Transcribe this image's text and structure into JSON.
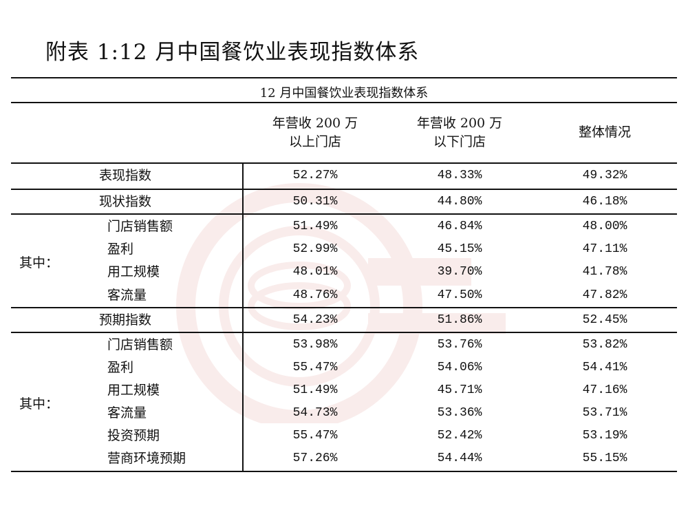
{
  "document": {
    "title": "附表 1:12 月中国餐饮业表现指数体系"
  },
  "table": {
    "caption": "12 月中国餐饮业表现指数体系",
    "headers": {
      "col1_line1": "年营收 200 万",
      "col1_line2": "以上门店",
      "col2_line1": "年营收 200 万",
      "col2_line2": "以下门店",
      "col3": "整体情况"
    },
    "rows": [
      {
        "label": "表现指数",
        "v1": "52.27%",
        "v2": "48.33%",
        "v3": "49.32%"
      },
      {
        "label": "现状指数",
        "v1": "50.31%",
        "v2": "44.80%",
        "v3": "46.18%"
      },
      {
        "label": "门店销售额",
        "v1": "51.49%",
        "v2": "46.84%",
        "v3": "48.00%"
      },
      {
        "label": "盈利",
        "v1": "52.99%",
        "v2": "45.15%",
        "v3": "47.11%"
      },
      {
        "label": "用工规模",
        "v1": "48.01%",
        "v2": "39.70%",
        "v3": "41.78%"
      },
      {
        "label": "客流量",
        "v1": "48.76%",
        "v2": "47.50%",
        "v3": "47.82%"
      },
      {
        "label": "预期指数",
        "v1": "54.23%",
        "v2": "51.86%",
        "v3": "52.45%"
      },
      {
        "label": "门店销售额",
        "v1": "53.98%",
        "v2": "53.76%",
        "v3": "53.82%"
      },
      {
        "label": "盈利",
        "v1": "55.47%",
        "v2": "54.06%",
        "v3": "54.41%"
      },
      {
        "label": "用工规模",
        "v1": "51.49%",
        "v2": "45.71%",
        "v3": "47.16%"
      },
      {
        "label": "客流量",
        "v1": "54.73%",
        "v2": "53.36%",
        "v3": "53.71%"
      },
      {
        "label": "投资预期",
        "v1": "55.47%",
        "v2": "52.42%",
        "v3": "53.19%"
      },
      {
        "label": "营商环境预期",
        "v1": "57.26%",
        "v2": "54.44%",
        "v3": "55.15%"
      }
    ],
    "group_labels": [
      "其中：",
      "其中："
    ]
  },
  "colors": {
    "watermark": "#c0392b",
    "text": "#111111",
    "rules": "#111111"
  }
}
